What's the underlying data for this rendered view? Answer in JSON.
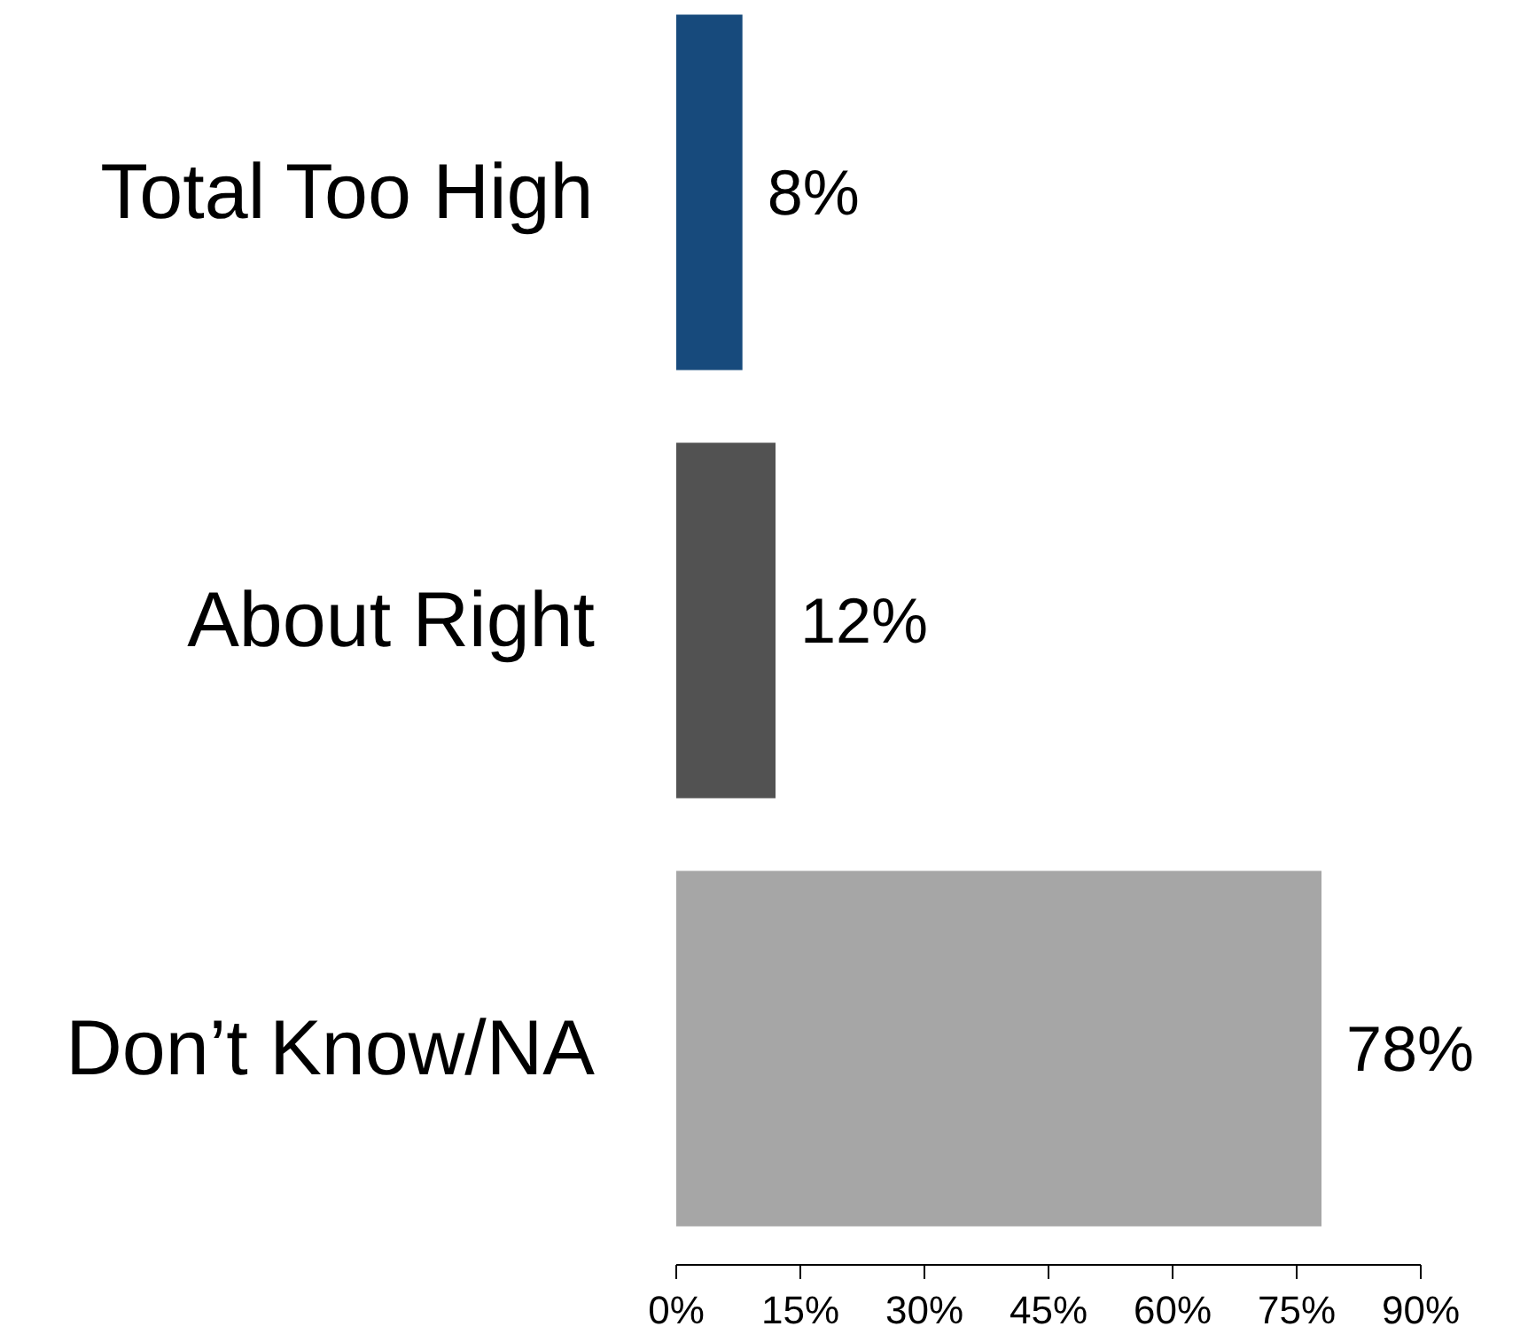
{
  "chart_data": {
    "type": "bar",
    "orientation": "horizontal",
    "categories": [
      "Total Too High",
      "About Right",
      "Don’t Know/NA"
    ],
    "values": [
      8,
      12,
      78
    ],
    "colors": [
      "#174a7c",
      "#525252",
      "#a6a6a6"
    ],
    "value_labels": [
      "8%",
      "12%",
      "78%"
    ],
    "xlim": [
      0,
      90
    ],
    "xticks": [
      {
        "value": 0,
        "label": "0%"
      },
      {
        "value": 15,
        "label": "15%"
      },
      {
        "value": 30,
        "label": "30%"
      },
      {
        "value": 45,
        "label": "45%"
      },
      {
        "value": 60,
        "label": "60%"
      },
      {
        "value": 75,
        "label": "75%"
      },
      {
        "value": 90,
        "label": "90%"
      }
    ],
    "grid": false
  }
}
